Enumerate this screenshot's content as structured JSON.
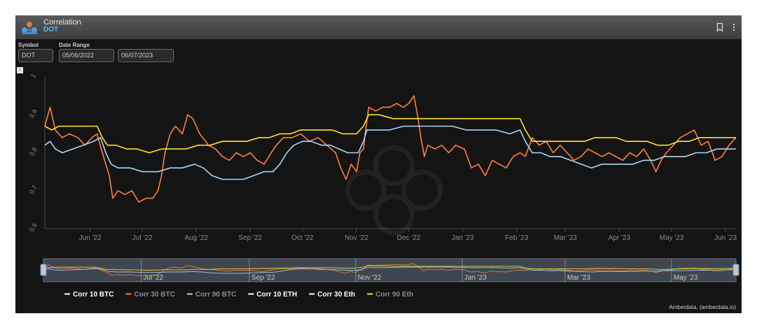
{
  "widget": {
    "title": "Correlation",
    "subtitle": "DOT",
    "credit": "Amberdata, (amberdata.io)"
  },
  "controls": {
    "symbol_label": "Symbol",
    "symbol_value": "DOT",
    "date_range_label": "Date Range",
    "start_date": "05/06/2022",
    "end_date": "06/07/2023"
  },
  "icons": {
    "logo": "amberdata-logo-icon",
    "bookmark": "bookmark-icon",
    "menu": "more-vertical-icon",
    "toggle": "expand-icon"
  },
  "chart_data": {
    "type": "line",
    "title": "",
    "xlabel": "",
    "ylabel": "",
    "x_range": [
      "2022-05-06",
      "2023-06-07"
    ],
    "ylim": [
      0.6,
      1
    ],
    "y_ticks": [
      "0.6",
      "0.7",
      "0.8",
      "0.9",
      "1"
    ],
    "x_ticks": [
      {
        "label": "Jun '22",
        "date": "2022-06-01"
      },
      {
        "label": "Jul '22",
        "date": "2022-07-01"
      },
      {
        "label": "Aug '22",
        "date": "2022-08-01"
      },
      {
        "label": "Sep '22",
        "date": "2022-09-01"
      },
      {
        "label": "Oct '22",
        "date": "2022-10-01"
      },
      {
        "label": "Nov '22",
        "date": "2022-11-01"
      },
      {
        "label": "Dec '22",
        "date": "2022-12-01"
      },
      {
        "label": "Jan '23",
        "date": "2023-01-01"
      },
      {
        "label": "Feb '23",
        "date": "2023-02-01"
      },
      {
        "label": "Mar '23",
        "date": "2023-03-01"
      },
      {
        "label": "Apr '23",
        "date": "2023-04-01"
      },
      {
        "label": "May '23",
        "date": "2023-05-01"
      },
      {
        "label": "Jun '23",
        "date": "2023-06-01"
      }
    ],
    "navigator_ticks": [
      {
        "label": "Jul '22",
        "date": "2022-07-01"
      },
      {
        "label": "Sep '22",
        "date": "2022-09-01"
      },
      {
        "label": "Nov '22",
        "date": "2022-11-01"
      },
      {
        "label": "Jan '23",
        "date": "2023-01-01"
      },
      {
        "label": "Mar '23",
        "date": "2023-03-01"
      },
      {
        "label": "May '23",
        "date": "2023-05-01"
      }
    ],
    "grid": false,
    "legend_position": "bottom-left",
    "series": [
      {
        "name": "Corr 10 BTC",
        "color": "#ffffff",
        "visible": false,
        "points": []
      },
      {
        "name": "Corr 30 BTC",
        "color": "#ff7f3f",
        "visible": true,
        "points": [
          [
            "2022-05-06",
            0.87
          ],
          [
            "2022-05-09",
            0.92
          ],
          [
            "2022-05-12",
            0.86
          ],
          [
            "2022-05-16",
            0.84
          ],
          [
            "2022-05-20",
            0.85
          ],
          [
            "2022-05-25",
            0.84
          ],
          [
            "2022-05-29",
            0.82
          ],
          [
            "2022-06-02",
            0.84
          ],
          [
            "2022-06-05",
            0.85
          ],
          [
            "2022-06-08",
            0.8
          ],
          [
            "2022-06-10",
            0.77
          ],
          [
            "2022-06-12",
            0.74
          ],
          [
            "2022-06-14",
            0.68
          ],
          [
            "2022-06-17",
            0.7
          ],
          [
            "2022-06-21",
            0.69
          ],
          [
            "2022-06-25",
            0.7
          ],
          [
            "2022-06-29",
            0.67
          ],
          [
            "2022-07-03",
            0.68
          ],
          [
            "2022-07-07",
            0.68
          ],
          [
            "2022-07-10",
            0.7
          ],
          [
            "2022-07-12",
            0.74
          ],
          [
            "2022-07-14",
            0.8
          ],
          [
            "2022-07-17",
            0.85
          ],
          [
            "2022-07-20",
            0.87
          ],
          [
            "2022-07-24",
            0.85
          ],
          [
            "2022-07-27",
            0.9
          ],
          [
            "2022-07-30",
            0.89
          ],
          [
            "2022-08-03",
            0.85
          ],
          [
            "2022-08-08",
            0.82
          ],
          [
            "2022-08-12",
            0.81
          ],
          [
            "2022-08-16",
            0.79
          ],
          [
            "2022-08-20",
            0.78
          ],
          [
            "2022-08-24",
            0.8
          ],
          [
            "2022-08-28",
            0.79
          ],
          [
            "2022-09-01",
            0.8
          ],
          [
            "2022-09-05",
            0.78
          ],
          [
            "2022-09-09",
            0.77
          ],
          [
            "2022-09-13",
            0.8
          ],
          [
            "2022-09-16",
            0.82
          ],
          [
            "2022-09-20",
            0.84
          ],
          [
            "2022-09-25",
            0.84
          ],
          [
            "2022-09-30",
            0.85
          ],
          [
            "2022-10-05",
            0.83
          ],
          [
            "2022-10-10",
            0.84
          ],
          [
            "2022-10-15",
            0.82
          ],
          [
            "2022-10-20",
            0.8
          ],
          [
            "2022-10-23",
            0.76
          ],
          [
            "2022-10-26",
            0.73
          ],
          [
            "2022-10-29",
            0.77
          ],
          [
            "2022-11-01",
            0.75
          ],
          [
            "2022-11-03",
            0.8
          ],
          [
            "2022-11-05",
            0.81
          ],
          [
            "2022-11-06",
            0.85
          ],
          [
            "2022-11-08",
            0.92
          ],
          [
            "2022-11-12",
            0.91
          ],
          [
            "2022-11-16",
            0.92
          ],
          [
            "2022-11-20",
            0.92
          ],
          [
            "2022-11-24",
            0.93
          ],
          [
            "2022-11-28",
            0.92
          ],
          [
            "2022-12-01",
            0.93
          ],
          [
            "2022-12-04",
            0.95
          ],
          [
            "2022-12-06",
            0.9
          ],
          [
            "2022-12-08",
            0.84
          ],
          [
            "2022-12-10",
            0.79
          ],
          [
            "2022-12-12",
            0.82
          ],
          [
            "2022-12-16",
            0.81
          ],
          [
            "2022-12-20",
            0.82
          ],
          [
            "2022-12-24",
            0.8
          ],
          [
            "2022-12-28",
            0.82
          ],
          [
            "2023-01-02",
            0.81
          ],
          [
            "2023-01-06",
            0.76
          ],
          [
            "2023-01-10",
            0.77
          ],
          [
            "2023-01-14",
            0.74
          ],
          [
            "2023-01-18",
            0.78
          ],
          [
            "2023-01-22",
            0.77
          ],
          [
            "2023-01-26",
            0.76
          ],
          [
            "2023-01-30",
            0.79
          ],
          [
            "2023-02-03",
            0.8
          ],
          [
            "2023-02-06",
            0.79
          ],
          [
            "2023-02-10",
            0.84
          ],
          [
            "2023-02-14",
            0.82
          ],
          [
            "2023-02-18",
            0.83
          ],
          [
            "2023-02-22",
            0.8
          ],
          [
            "2023-02-26",
            0.82
          ],
          [
            "2023-03-02",
            0.8
          ],
          [
            "2023-03-06",
            0.78
          ],
          [
            "2023-03-10",
            0.79
          ],
          [
            "2023-03-14",
            0.81
          ],
          [
            "2023-03-18",
            0.8
          ],
          [
            "2023-03-22",
            0.79
          ],
          [
            "2023-03-26",
            0.8
          ],
          [
            "2023-03-30",
            0.79
          ],
          [
            "2023-04-03",
            0.78
          ],
          [
            "2023-04-07",
            0.8
          ],
          [
            "2023-04-11",
            0.79
          ],
          [
            "2023-04-15",
            0.81
          ],
          [
            "2023-04-19",
            0.78
          ],
          [
            "2023-04-22",
            0.75
          ],
          [
            "2023-04-25",
            0.78
          ],
          [
            "2023-04-28",
            0.8
          ],
          [
            "2023-05-02",
            0.82
          ],
          [
            "2023-05-06",
            0.84
          ],
          [
            "2023-05-10",
            0.85
          ],
          [
            "2023-05-14",
            0.86
          ],
          [
            "2023-05-18",
            0.82
          ],
          [
            "2023-05-22",
            0.83
          ],
          [
            "2023-05-26",
            0.78
          ],
          [
            "2023-05-30",
            0.79
          ],
          [
            "2023-06-03",
            0.82
          ],
          [
            "2023-06-07",
            0.84
          ]
        ]
      },
      {
        "name": "Corr 90 BTC",
        "color": "#a8d8f8",
        "visible": true,
        "points": [
          [
            "2022-05-06",
            0.82
          ],
          [
            "2022-05-09",
            0.83
          ],
          [
            "2022-05-12",
            0.81
          ],
          [
            "2022-05-16",
            0.8
          ],
          [
            "2022-05-22",
            0.81
          ],
          [
            "2022-05-28",
            0.82
          ],
          [
            "2022-06-03",
            0.83
          ],
          [
            "2022-06-07",
            0.84
          ],
          [
            "2022-06-10",
            0.8
          ],
          [
            "2022-06-13",
            0.77
          ],
          [
            "2022-06-17",
            0.76
          ],
          [
            "2022-06-24",
            0.76
          ],
          [
            "2022-07-01",
            0.75
          ],
          [
            "2022-07-10",
            0.75
          ],
          [
            "2022-07-17",
            0.76
          ],
          [
            "2022-07-24",
            0.76
          ],
          [
            "2022-07-31",
            0.77
          ],
          [
            "2022-08-05",
            0.76
          ],
          [
            "2022-08-10",
            0.74
          ],
          [
            "2022-08-16",
            0.73
          ],
          [
            "2022-08-22",
            0.73
          ],
          [
            "2022-08-28",
            0.73
          ],
          [
            "2022-09-03",
            0.74
          ],
          [
            "2022-09-09",
            0.75
          ],
          [
            "2022-09-14",
            0.75
          ],
          [
            "2022-09-18",
            0.77
          ],
          [
            "2022-09-22",
            0.8
          ],
          [
            "2022-09-26",
            0.82
          ],
          [
            "2022-10-01",
            0.83
          ],
          [
            "2022-10-06",
            0.83
          ],
          [
            "2022-10-12",
            0.82
          ],
          [
            "2022-10-17",
            0.82
          ],
          [
            "2022-10-22",
            0.81
          ],
          [
            "2022-10-27",
            0.8
          ],
          [
            "2022-11-02",
            0.8
          ],
          [
            "2022-11-05",
            0.83
          ],
          [
            "2022-11-07",
            0.86
          ],
          [
            "2022-11-12",
            0.86
          ],
          [
            "2022-11-20",
            0.86
          ],
          [
            "2022-11-28",
            0.87
          ],
          [
            "2022-12-04",
            0.87
          ],
          [
            "2022-12-10",
            0.87
          ],
          [
            "2022-12-18",
            0.87
          ],
          [
            "2022-12-26",
            0.87
          ],
          [
            "2023-01-03",
            0.86
          ],
          [
            "2023-01-12",
            0.86
          ],
          [
            "2023-01-20",
            0.86
          ],
          [
            "2023-01-28",
            0.85
          ],
          [
            "2023-02-03",
            0.86
          ],
          [
            "2023-02-06",
            0.83
          ],
          [
            "2023-02-10",
            0.8
          ],
          [
            "2023-02-15",
            0.8
          ],
          [
            "2023-02-20",
            0.79
          ],
          [
            "2023-02-26",
            0.79
          ],
          [
            "2023-03-04",
            0.78
          ],
          [
            "2023-03-10",
            0.77
          ],
          [
            "2023-03-16",
            0.76
          ],
          [
            "2023-03-22",
            0.77
          ],
          [
            "2023-03-28",
            0.77
          ],
          [
            "2023-04-03",
            0.77
          ],
          [
            "2023-04-09",
            0.77
          ],
          [
            "2023-04-15",
            0.78
          ],
          [
            "2023-04-21",
            0.78
          ],
          [
            "2023-04-27",
            0.79
          ],
          [
            "2023-05-03",
            0.79
          ],
          [
            "2023-05-09",
            0.79
          ],
          [
            "2023-05-15",
            0.8
          ],
          [
            "2023-05-21",
            0.8
          ],
          [
            "2023-05-27",
            0.81
          ],
          [
            "2023-06-02",
            0.81
          ],
          [
            "2023-06-07",
            0.81
          ]
        ]
      },
      {
        "name": "Corr 10 ETH",
        "color": "#ffffff",
        "visible": false,
        "points": []
      },
      {
        "name": "Corr 30 Eth",
        "color": "#ffffff",
        "visible": false,
        "points": []
      },
      {
        "name": "Corr 90 Eth",
        "color": "#ffe12e",
        "visible": true,
        "points": [
          [
            "2022-05-06",
            0.87
          ],
          [
            "2022-05-10",
            0.86
          ],
          [
            "2022-05-14",
            0.87
          ],
          [
            "2022-05-20",
            0.87
          ],
          [
            "2022-05-28",
            0.87
          ],
          [
            "2022-06-05",
            0.87
          ],
          [
            "2022-06-08",
            0.84
          ],
          [
            "2022-06-11",
            0.82
          ],
          [
            "2022-06-16",
            0.82
          ],
          [
            "2022-06-22",
            0.81
          ],
          [
            "2022-06-28",
            0.81
          ],
          [
            "2022-07-05",
            0.8
          ],
          [
            "2022-07-12",
            0.81
          ],
          [
            "2022-07-19",
            0.81
          ],
          [
            "2022-07-26",
            0.81
          ],
          [
            "2022-08-02",
            0.82
          ],
          [
            "2022-08-09",
            0.82
          ],
          [
            "2022-08-16",
            0.83
          ],
          [
            "2022-08-23",
            0.83
          ],
          [
            "2022-08-30",
            0.83
          ],
          [
            "2022-09-06",
            0.84
          ],
          [
            "2022-09-12",
            0.84
          ],
          [
            "2022-09-18",
            0.85
          ],
          [
            "2022-09-24",
            0.85
          ],
          [
            "2022-09-30",
            0.86
          ],
          [
            "2022-10-06",
            0.86
          ],
          [
            "2022-10-12",
            0.86
          ],
          [
            "2022-10-18",
            0.86
          ],
          [
            "2022-10-24",
            0.85
          ],
          [
            "2022-11-01",
            0.85
          ],
          [
            "2022-11-05",
            0.87
          ],
          [
            "2022-11-08",
            0.9
          ],
          [
            "2022-11-14",
            0.9
          ],
          [
            "2022-11-22",
            0.89
          ],
          [
            "2022-11-30",
            0.89
          ],
          [
            "2022-12-08",
            0.89
          ],
          [
            "2022-12-16",
            0.89
          ],
          [
            "2022-12-24",
            0.89
          ],
          [
            "2023-01-02",
            0.89
          ],
          [
            "2023-01-10",
            0.89
          ],
          [
            "2023-01-18",
            0.89
          ],
          [
            "2023-01-26",
            0.89
          ],
          [
            "2023-02-03",
            0.89
          ],
          [
            "2023-02-06",
            0.86
          ],
          [
            "2023-02-10",
            0.83
          ],
          [
            "2023-02-16",
            0.83
          ],
          [
            "2023-02-22",
            0.83
          ],
          [
            "2023-02-28",
            0.83
          ],
          [
            "2023-03-06",
            0.83
          ],
          [
            "2023-03-12",
            0.83
          ],
          [
            "2023-03-18",
            0.84
          ],
          [
            "2023-03-24",
            0.84
          ],
          [
            "2023-03-30",
            0.84
          ],
          [
            "2023-04-05",
            0.83
          ],
          [
            "2023-04-11",
            0.83
          ],
          [
            "2023-04-17",
            0.83
          ],
          [
            "2023-04-23",
            0.82
          ],
          [
            "2023-04-29",
            0.82
          ],
          [
            "2023-05-05",
            0.83
          ],
          [
            "2023-05-11",
            0.83
          ],
          [
            "2023-05-17",
            0.84
          ],
          [
            "2023-05-23",
            0.84
          ],
          [
            "2023-05-29",
            0.84
          ],
          [
            "2023-06-04",
            0.84
          ],
          [
            "2023-06-07",
            0.84
          ]
        ]
      }
    ]
  }
}
